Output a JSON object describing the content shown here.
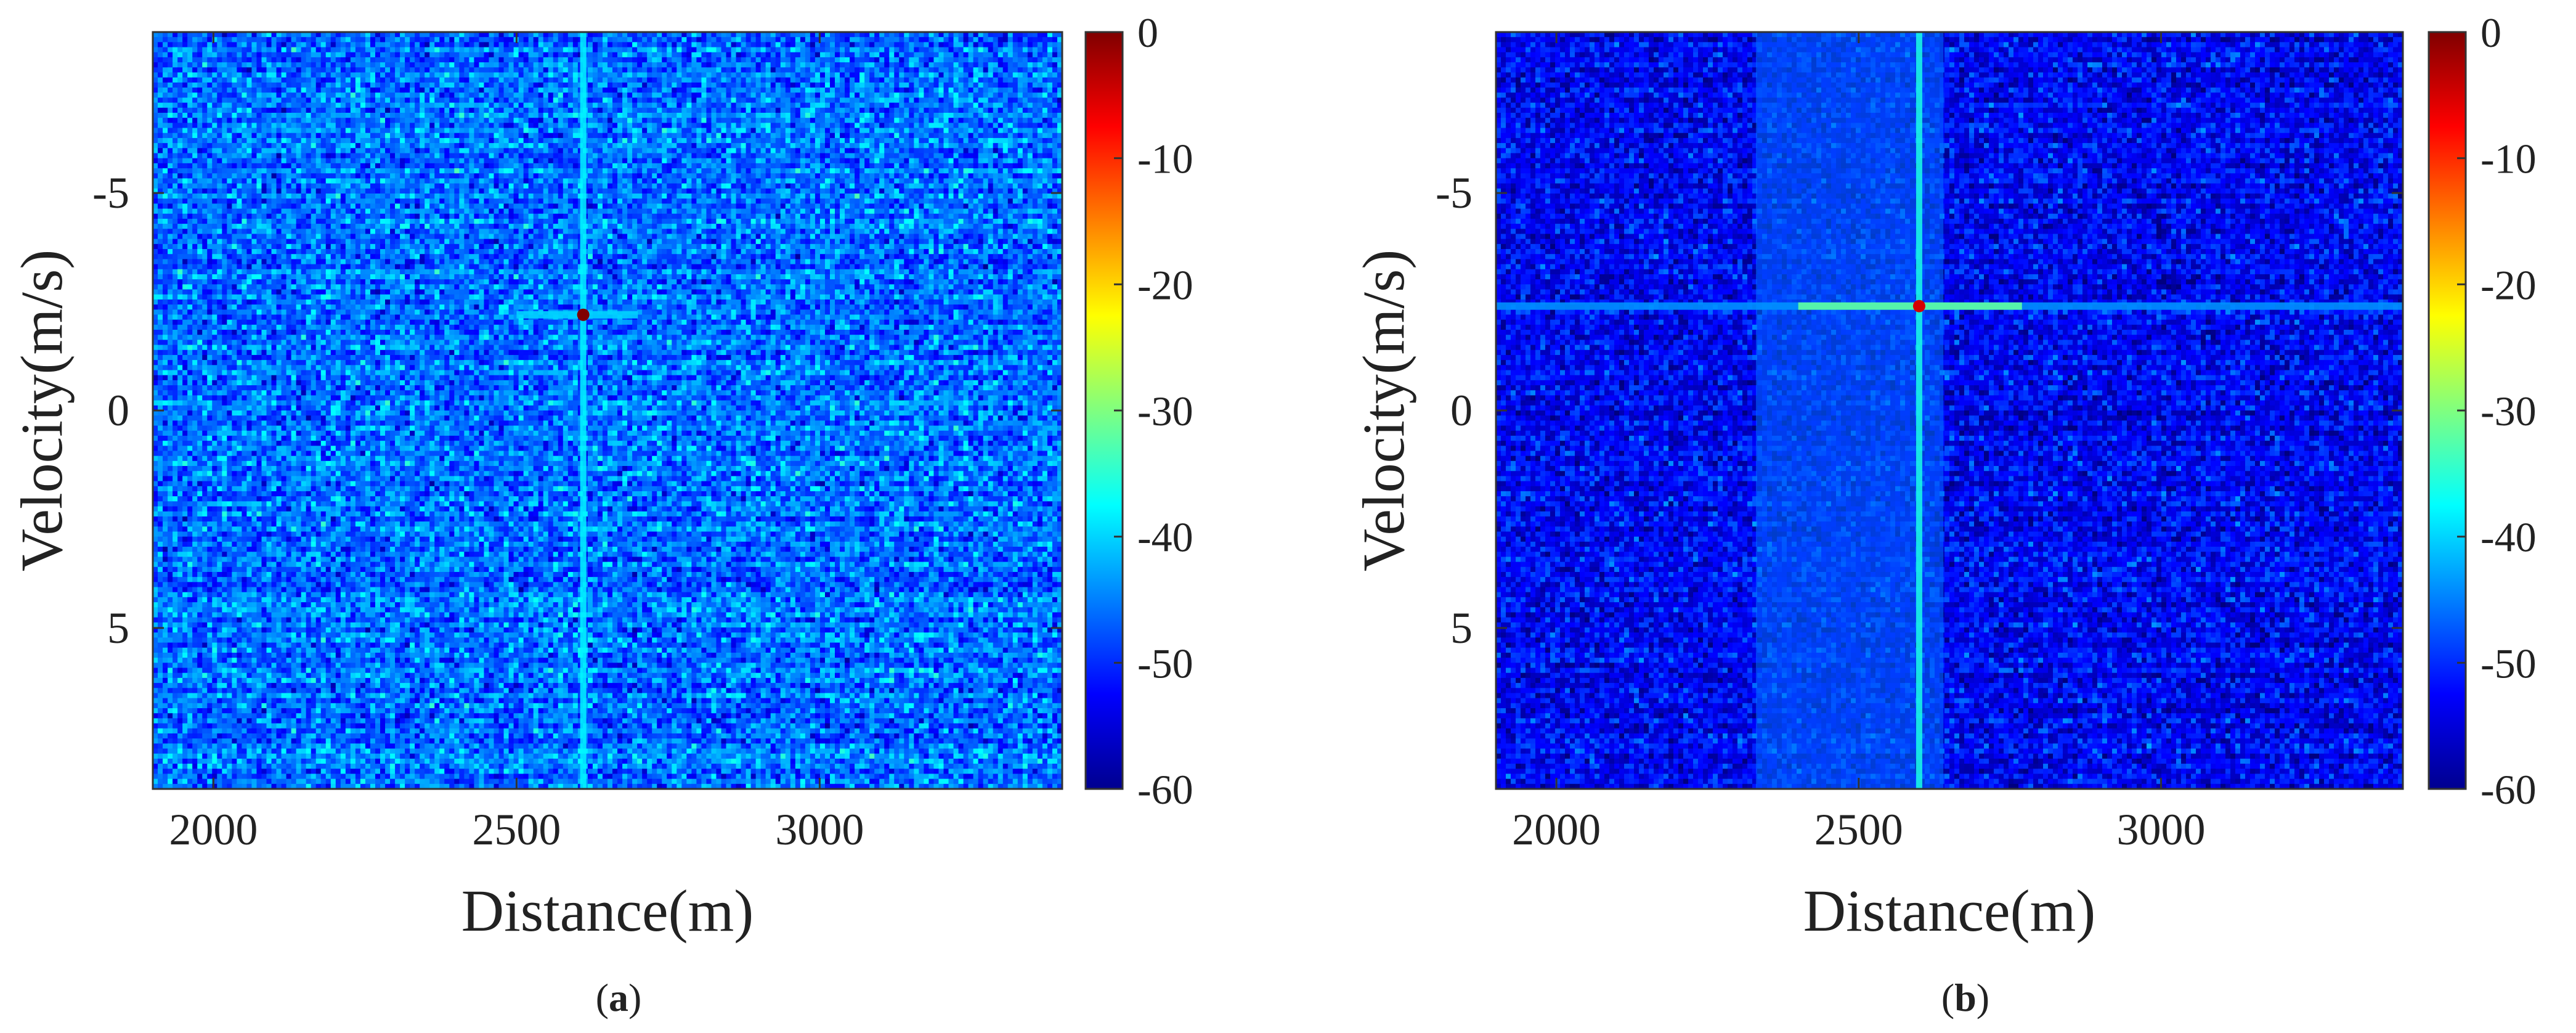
{
  "chart_data": [
    {
      "type": "heatmap",
      "panel_label_open": "(",
      "panel_label": "a",
      "panel_label_close": ")",
      "xlabel": "Distance(m)",
      "ylabel": "Velocity(m/s)",
      "xlim": [
        1900,
        3400
      ],
      "ylim": [
        -8.7,
        8.7
      ],
      "y_reversed": true,
      "xticks": [
        2000,
        2500,
        3000
      ],
      "xtick_labels": [
        "2000",
        "2500",
        "3000"
      ],
      "yticks": [
        -5,
        0,
        5
      ],
      "ytick_labels": [
        "-5",
        "0",
        "5"
      ],
      "colorbar": {
        "ticks": [
          0,
          -10,
          -20,
          -30,
          -40,
          -50,
          -60
        ],
        "tick_labels": [
          "0",
          "-10",
          "-20",
          "-30",
          "-40",
          "-50",
          "-60"
        ],
        "range": [
          -60,
          0
        ],
        "colormap": "jet"
      },
      "noise_floor_db": -46,
      "noise_spread_db": 6,
      "peak": {
        "x": 2610,
        "y": -2.2,
        "value": 0
      },
      "features": [
        {
          "kind": "vertical-line",
          "x": 2610,
          "value": -38
        },
        {
          "kind": "horizontal-line",
          "y": -2.2,
          "x_range": [
            2500,
            2700
          ],
          "value": -40
        }
      ]
    },
    {
      "type": "heatmap",
      "panel_label_open": "(",
      "panel_label": "b",
      "panel_label_close": ")",
      "xlabel": "Distance(m)",
      "ylabel": "Velocity(m/s)",
      "xlim": [
        1900,
        3400
      ],
      "ylim": [
        -8.7,
        8.7
      ],
      "y_reversed": true,
      "xticks": [
        2000,
        2500,
        3000
      ],
      "xtick_labels": [
        "2000",
        "2500",
        "3000"
      ],
      "yticks": [
        -5,
        0,
        5
      ],
      "ytick_labels": [
        "-5",
        "0",
        "5"
      ],
      "colorbar": {
        "ticks": [
          0,
          -10,
          -20,
          -30,
          -40,
          -50,
          -60
        ],
        "tick_labels": [
          "0",
          "-10",
          "-20",
          "-30",
          "-40",
          "-50",
          "-60"
        ],
        "range": [
          -60,
          0
        ],
        "colormap": "jet"
      },
      "noise_floor_db": -53,
      "noise_spread_db": 5,
      "peak": {
        "x": 2600,
        "y": -2.4,
        "value": -5
      },
      "features": [
        {
          "kind": "vertical-band",
          "x_range": [
            2330,
            2640
          ],
          "value": -46
        },
        {
          "kind": "vertical-line",
          "x": 2600,
          "value": -36
        },
        {
          "kind": "horizontal-line",
          "y": -2.4,
          "x_range": [
            1900,
            3400
          ],
          "value": -44
        },
        {
          "kind": "horizontal-line",
          "y": -2.4,
          "x_range": [
            2400,
            2770
          ],
          "value": -32
        }
      ]
    }
  ]
}
